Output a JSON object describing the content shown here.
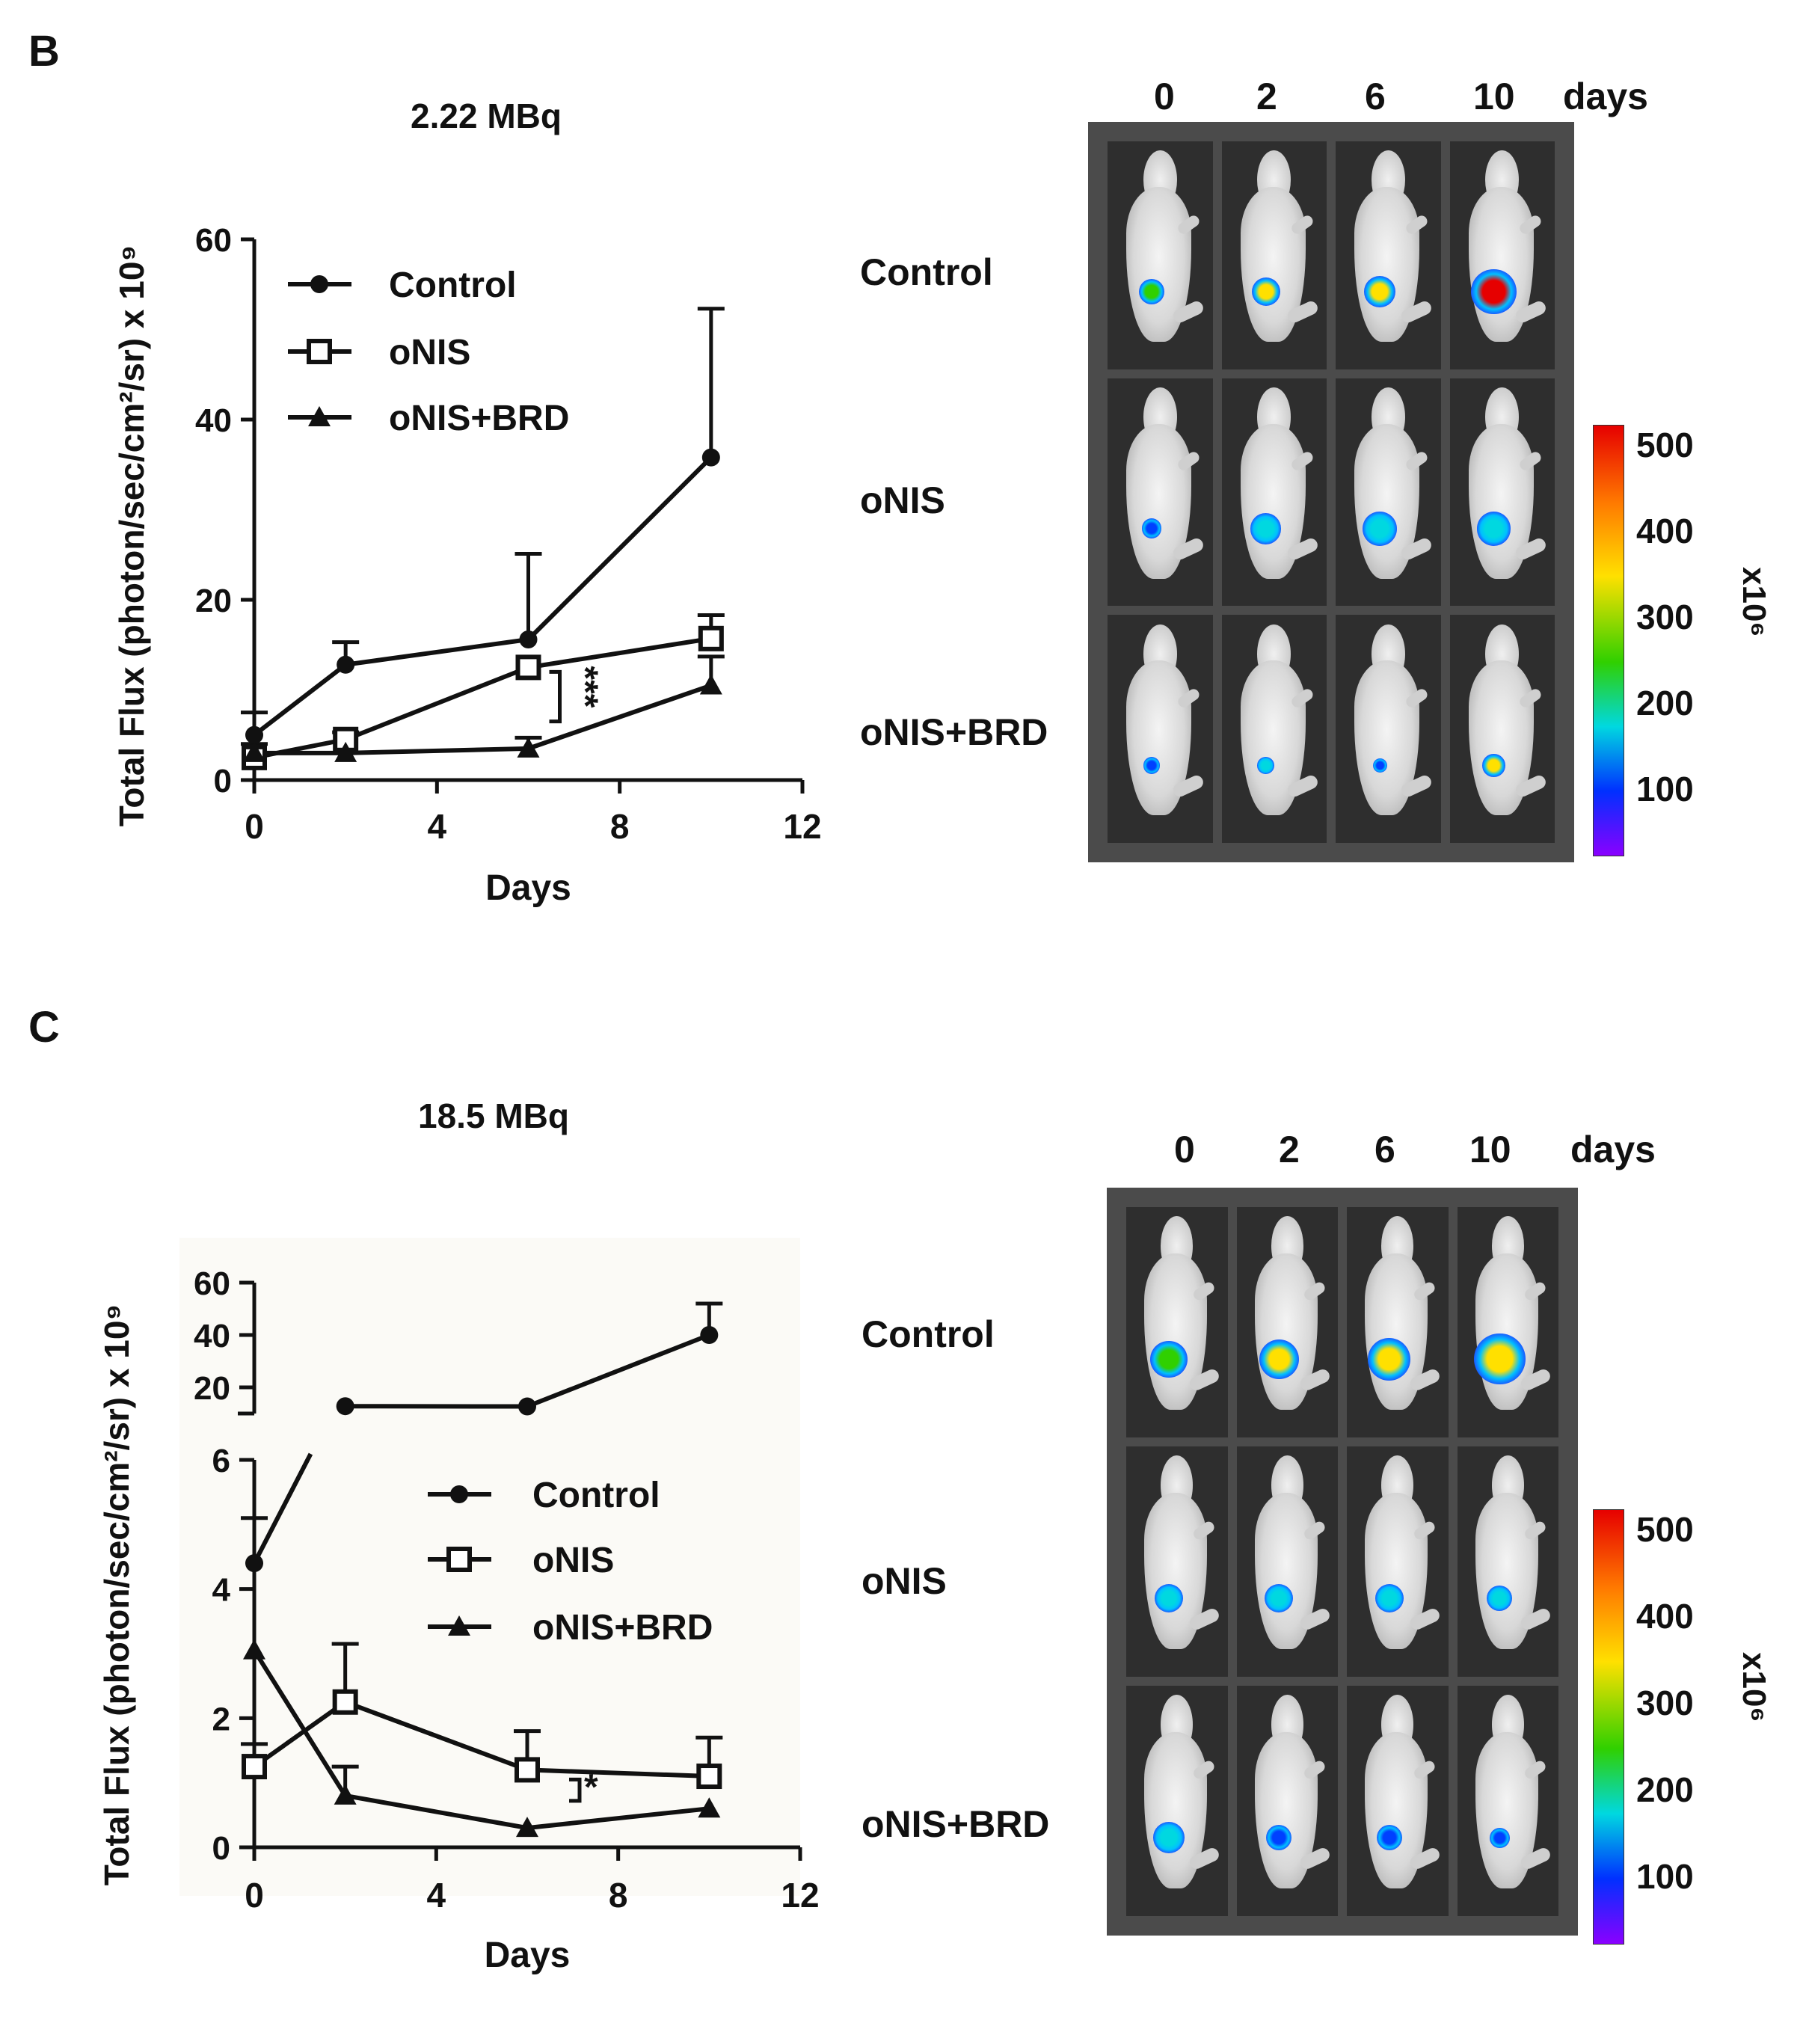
{
  "panels": {
    "b_letter": "B",
    "c_letter": "C"
  },
  "colors": {
    "line": "#111111",
    "imaging_bg": "#4b4b4b",
    "plot_c_bg": "#fbfaf6"
  },
  "chart_data": [
    {
      "id": "B",
      "type": "line",
      "title": "2.22 MBq",
      "xlabel": "Days",
      "ylabel": "Total Flux (photon/sec/cm²/sr) x 10⁹",
      "xlim": [
        0,
        12
      ],
      "ylim": [
        0,
        60
      ],
      "xticks": [
        0,
        4,
        8,
        12
      ],
      "yticks": [
        0,
        20,
        40,
        60
      ],
      "legend": {
        "position": "top-left"
      },
      "significance": {
        "label": "***",
        "between": [
          "oNIS",
          "oNIS+BRD"
        ],
        "x": 6
      },
      "series": [
        {
          "name": "Control",
          "marker": "circle",
          "x": [
            0,
            2,
            6,
            10
          ],
          "y": [
            5.0,
            12.8,
            15.6,
            35.8
          ],
          "err": [
            2.5,
            2.5,
            9.5,
            16.5
          ]
        },
        {
          "name": "oNIS",
          "marker": "square",
          "x": [
            0,
            2,
            6,
            10
          ],
          "y": [
            2.5,
            4.5,
            12.5,
            15.7
          ],
          "err": [
            1.5,
            0.8,
            0,
            2.6
          ]
        },
        {
          "name": "oNIS+BRD",
          "marker": "triangle",
          "x": [
            0,
            2,
            6,
            10
          ],
          "y": [
            3.0,
            3.0,
            3.5,
            10.5
          ],
          "err": [
            0,
            0,
            1.2,
            3.2
          ]
        }
      ]
    },
    {
      "id": "C",
      "type": "line",
      "title": "18.5 MBq",
      "xlabel": "Days",
      "ylabel": "Total Flux (photon/sec/cm²/sr) x 10⁹",
      "xlim": [
        0,
        12
      ],
      "ylim_lower": [
        0,
        6
      ],
      "ylim_upper": [
        10,
        60
      ],
      "xticks": [
        0,
        4,
        8,
        12
      ],
      "yticks_lower": [
        0,
        2,
        4,
        6
      ],
      "yticks_upper": [
        20,
        40,
        60
      ],
      "broken_axis": true,
      "legend": {
        "position": "center"
      },
      "significance": {
        "label": "*",
        "between": [
          "oNIS",
          "oNIS+BRD"
        ],
        "x": 6
      },
      "series": [
        {
          "name": "Control",
          "marker": "circle",
          "x": [
            0,
            2,
            6,
            10
          ],
          "y": [
            4.4,
            12.8,
            12.7,
            40.0
          ],
          "err": [
            0.7,
            0,
            0,
            12.0
          ]
        },
        {
          "name": "oNIS",
          "marker": "square",
          "x": [
            0,
            2,
            6,
            10
          ],
          "y": [
            1.25,
            2.25,
            1.2,
            1.1
          ],
          "err": [
            0.35,
            0.9,
            0.6,
            0.6
          ]
        },
        {
          "name": "oNIS+BRD",
          "marker": "triangle",
          "x": [
            0,
            2,
            6,
            10
          ],
          "y": [
            3.05,
            0.8,
            0.3,
            0.6
          ],
          "err": [
            0,
            0.45,
            0,
            0
          ]
        }
      ]
    }
  ],
  "imaging": [
    {
      "id": "B",
      "days": [
        "0",
        "2",
        "6",
        "10"
      ],
      "days_unit": "days",
      "rows": [
        "Control",
        "oNIS",
        "oNIS+BRD"
      ],
      "colorbar": {
        "ticks": [
          "500",
          "400",
          "300",
          "200",
          "100"
        ],
        "unit": "x10⁶"
      },
      "signal_size": [
        [
          0.9,
          1.0,
          1.1,
          1.6
        ],
        [
          0.7,
          1.1,
          1.2,
          1.2
        ],
        [
          0.6,
          0.6,
          0.5,
          0.8
        ]
      ],
      "signal_intensity": [
        [
          0.6,
          0.85,
          0.85,
          1.0
        ],
        [
          0.25,
          0.55,
          0.55,
          0.55
        ],
        [
          0.4,
          0.5,
          0.35,
          0.75
        ]
      ]
    },
    {
      "id": "C",
      "days": [
        "0",
        "2",
        "6",
        "10"
      ],
      "days_unit": "days",
      "rows": [
        "Control",
        "oNIS",
        "oNIS+BRD"
      ],
      "colorbar": {
        "ticks": [
          "500",
          "400",
          "300",
          "200",
          "100"
        ],
        "unit": "x10⁶"
      },
      "signal_size": [
        [
          1.3,
          1.4,
          1.5,
          1.8
        ],
        [
          1.0,
          1.0,
          1.0,
          0.9
        ],
        [
          1.1,
          0.9,
          0.9,
          0.7
        ]
      ],
      "signal_intensity": [
        [
          0.6,
          0.8,
          0.85,
          0.85
        ],
        [
          0.55,
          0.55,
          0.5,
          0.45
        ],
        [
          0.45,
          0.3,
          0.35,
          0.25
        ]
      ]
    }
  ]
}
